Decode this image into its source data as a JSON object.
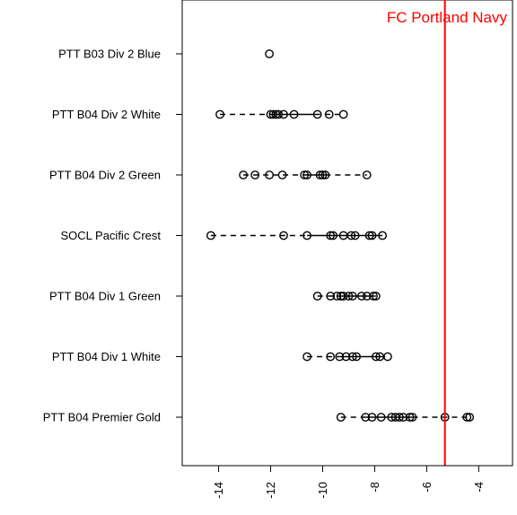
{
  "chart_data": {
    "type": "scatter",
    "orientation": "horizontal-dotplot",
    "title": "",
    "xlabel": "",
    "ylabel": "",
    "xlim": [
      -15.4,
      -2.7
    ],
    "x_ticks": [
      -14,
      -12,
      -10,
      -8,
      -6,
      -4
    ],
    "x_tick_labels": [
      "-14",
      "-12",
      "-10",
      "-8",
      "-6",
      "-4"
    ],
    "x_tick_label_rotation": "vertical",
    "categories": [
      "PTT B03 Div 2 Blue",
      "PTT B04 Div 2 White",
      "PTT B04 Div 2 Green",
      "SOCL Pacific Crest",
      "PTT B04 Div 1 Green",
      "PTT B04 Div 1 White",
      "PTT B04 Premier Gold"
    ],
    "rows": [
      {
        "points": [
          -12.05
        ],
        "box": [
          -12.05,
          -12.05
        ]
      },
      {
        "points": [
          -13.95,
          -12.0,
          -11.9,
          -11.8,
          -11.7,
          -11.5,
          -11.1,
          -10.2,
          -9.75,
          -9.2
        ],
        "box": [
          -11.95,
          -10.3
        ]
      },
      {
        "points": [
          -13.05,
          -12.6,
          -12.05,
          -11.55,
          -10.7,
          -10.6,
          -10.1,
          -10.0,
          -9.9,
          -8.3
        ],
        "box": [
          -10.75,
          -9.9
        ]
      },
      {
        "points": [
          -14.3,
          -11.5,
          -10.6,
          -9.7,
          -9.6,
          -9.2,
          -8.9,
          -8.75,
          -8.2,
          -8.1,
          -7.7
        ],
        "box": [
          -10.6,
          -7.7
        ]
      },
      {
        "points": [
          -10.2,
          -9.7,
          -9.45,
          -9.3,
          -9.2,
          -9.0,
          -8.85,
          -8.5,
          -8.3,
          -8.05,
          -7.95
        ],
        "box": [
          -9.45,
          -8.05
        ]
      },
      {
        "points": [
          -10.6,
          -9.7,
          -9.35,
          -9.1,
          -8.85,
          -8.7,
          -7.95,
          -7.8,
          -7.5
        ],
        "box": [
          -9.35,
          -7.8
        ]
      },
      {
        "points": [
          -9.3,
          -8.35,
          -8.1,
          -7.75,
          -7.35,
          -7.2,
          -7.05,
          -6.9,
          -6.65,
          -6.55,
          -5.3,
          -4.45,
          -4.35
        ],
        "box": [
          -8.35,
          -6.55
        ]
      }
    ],
    "reference_line": {
      "x": -5.3,
      "label": "FC Portland Navy",
      "color": "#ff0000"
    },
    "grid": false,
    "legend": "none",
    "colors": {
      "points": "#000000",
      "reference": "#ff0000"
    }
  }
}
